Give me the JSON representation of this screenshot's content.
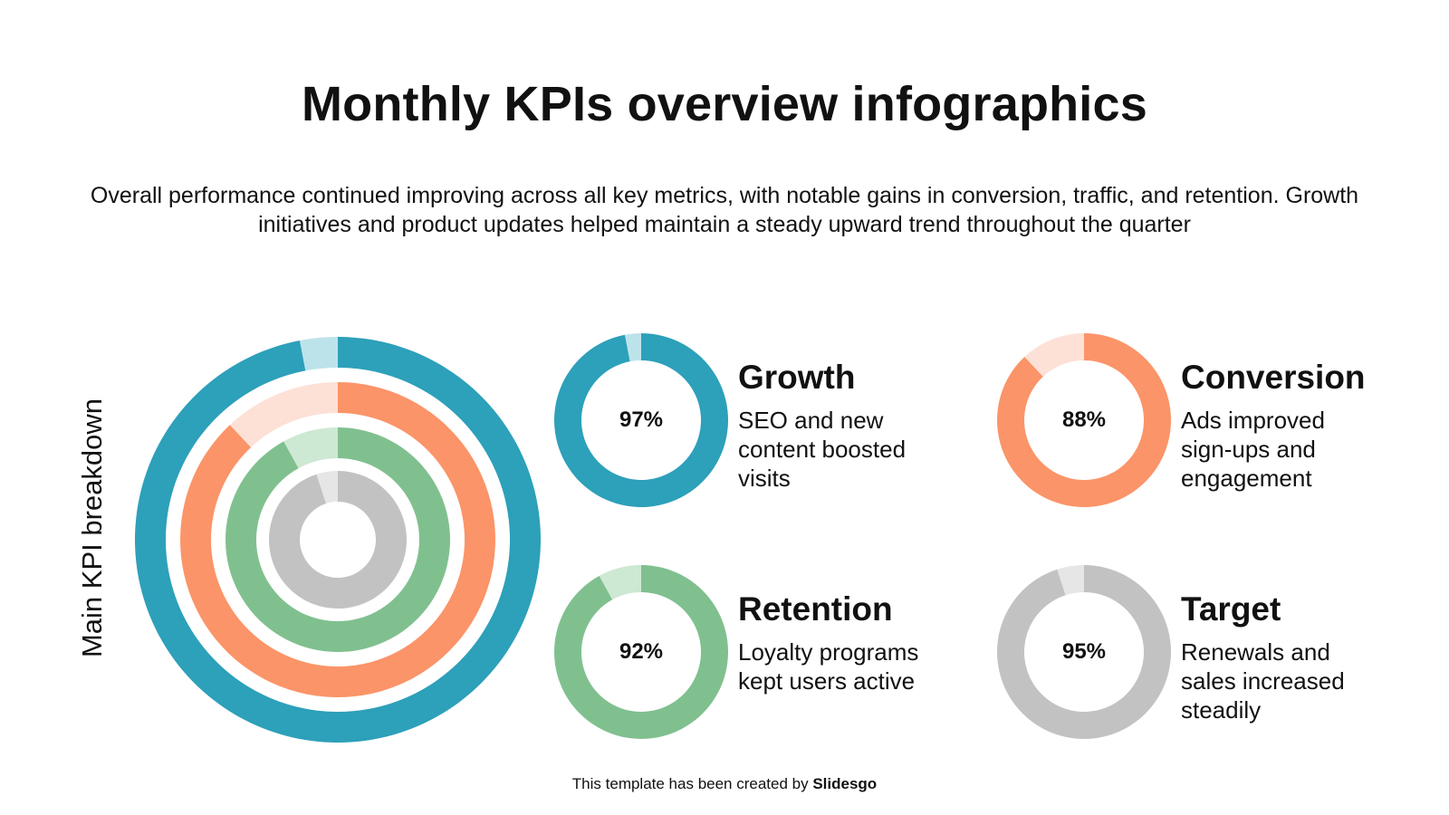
{
  "title": "Monthly KPIs overview infographics",
  "subtitle": "Overall performance continued improving across all key metrics, with notable gains in conversion, traffic, and retention. Growth initiatives and product updates helped maintain a steady upward trend throughout the quarter",
  "side_label": "Main KPI breakdown",
  "footer": {
    "prefix": "This template has been created by ",
    "brand": "Slidesgo"
  },
  "chart_data": [
    {
      "type": "radial-bar",
      "title": "Main KPI breakdown",
      "series": [
        {
          "name": "Growth",
          "value": 97,
          "color": "#2da0ba",
          "track": "#bde3ea"
        },
        {
          "name": "Conversion",
          "value": 88,
          "color": "#fb9468",
          "track": "#fde1d6"
        },
        {
          "name": "Retention",
          "value": 92,
          "color": "#80c08f",
          "track": "#cde8d3"
        },
        {
          "name": "Target",
          "value": 95,
          "color": "#c2c2c2",
          "track": "#e6e6e6"
        }
      ]
    },
    {
      "type": "donut",
      "cards": [
        {
          "title": "Growth",
          "label": "97%",
          "value": 97,
          "desc": "SEO and new content boosted visits",
          "color": "#2da0ba",
          "track": "#bde3ea"
        },
        {
          "title": "Conversion",
          "label": "88%",
          "value": 88,
          "desc": "Ads improved sign-ups and engagement",
          "color": "#fb9468",
          "track": "#fde1d6"
        },
        {
          "title": "Retention",
          "label": "92%",
          "value": 92,
          "desc": "Loyalty programs kept users active",
          "color": "#80c08f",
          "track": "#cde8d3"
        },
        {
          "title": "Target",
          "label": "95%",
          "value": 95,
          "desc": "Renewals and sales increased steadily",
          "color": "#c2c2c2",
          "track": "#e6e6e6"
        }
      ]
    }
  ]
}
